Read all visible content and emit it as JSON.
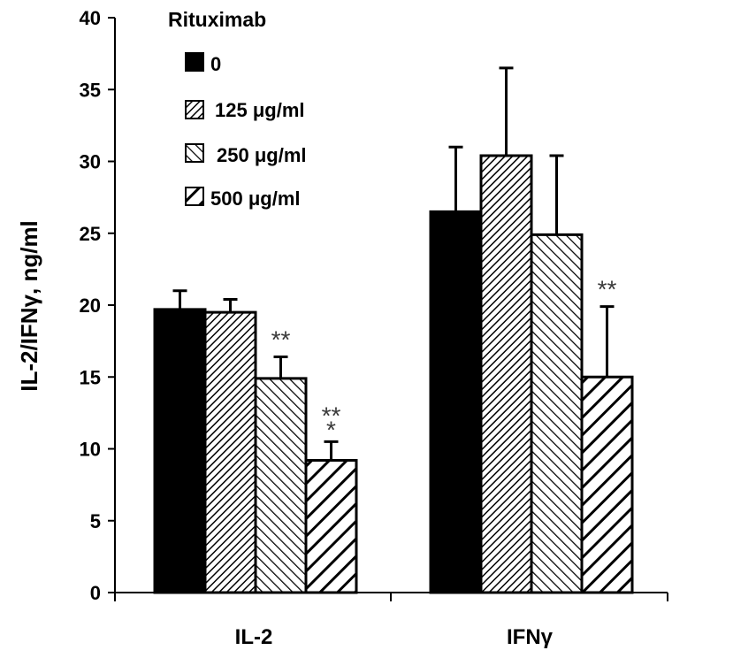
{
  "chart_data": {
    "type": "bar",
    "categories": [
      "IL-2",
      "IFNγ"
    ],
    "ylabel": "IL-2/IFNγ, ng/ml",
    "xlabel": "",
    "ylim": [
      0,
      40
    ],
    "yticks": [
      0,
      5,
      10,
      15,
      20,
      25,
      30,
      35,
      40
    ],
    "legend_title": "Rituximab",
    "legend_position": "top-left",
    "series": [
      {
        "name": "0",
        "pattern": "solid",
        "values": [
          19.7,
          26.5
        ],
        "errors": [
          1.3,
          4.5
        ],
        "annotations": [
          "",
          ""
        ]
      },
      {
        "name": "125 μg/ml",
        "pattern": "dense-diagonal",
        "values": [
          19.5,
          30.4
        ],
        "errors": [
          0.9,
          6.1
        ],
        "annotations": [
          "",
          ""
        ]
      },
      {
        "name": "250 μg/ml",
        "pattern": "diagonal",
        "values": [
          14.9,
          24.9
        ],
        "errors": [
          1.5,
          5.5
        ],
        "annotations": [
          "**",
          ""
        ]
      },
      {
        "name": "500 μg/ml",
        "pattern": "wide-diagonal",
        "values": [
          9.2,
          15.0
        ],
        "errors": [
          1.3,
          4.9
        ],
        "annotations": [
          "***",
          "**"
        ]
      }
    ],
    "colors": {
      "bar_fill": "#000000",
      "bar_stroke": "#000000",
      "background": "#ffffff",
      "annotation": "#3a3a3a"
    }
  }
}
